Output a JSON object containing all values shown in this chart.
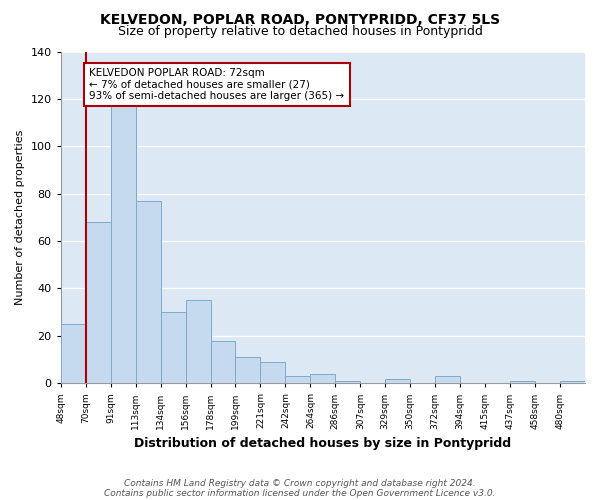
{
  "title": "KELVEDON, POPLAR ROAD, PONTYPRIDD, CF37 5LS",
  "subtitle": "Size of property relative to detached houses in Pontypridd",
  "xlabel": "Distribution of detached houses by size in Pontypridd",
  "ylabel": "Number of detached properties",
  "bar_values": [
    25,
    68,
    118,
    77,
    30,
    35,
    18,
    11,
    9,
    3,
    4,
    1,
    0,
    2,
    0,
    3,
    0,
    0,
    1,
    0,
    1
  ],
  "bin_labels": [
    "48sqm",
    "70sqm",
    "91sqm",
    "113sqm",
    "134sqm",
    "156sqm",
    "178sqm",
    "199sqm",
    "221sqm",
    "242sqm",
    "264sqm",
    "286sqm",
    "307sqm",
    "329sqm",
    "350sqm",
    "372sqm",
    "394sqm",
    "415sqm",
    "437sqm",
    "458sqm",
    "480sqm"
  ],
  "bar_color": "#c5d9ef",
  "bar_edge_color": "#7faacc",
  "property_line_color": "#aa0000",
  "property_line_bin": 1,
  "annotation_text": "KELVEDON POPLAR ROAD: 72sqm\n← 7% of detached houses are smaller (27)\n93% of semi-detached houses are larger (365) →",
  "annotation_box_color": "#ffffff",
  "annotation_box_edge": "#aa0000",
  "ylim": [
    0,
    140
  ],
  "yticks": [
    0,
    20,
    40,
    60,
    80,
    100,
    120,
    140
  ],
  "footer_line1": "Contains HM Land Registry data © Crown copyright and database right 2024.",
  "footer_line2": "Contains public sector information licensed under the Open Government Licence v3.0.",
  "fig_background": "#ffffff",
  "plot_background": "#dce9f5",
  "grid_color": "#ffffff"
}
